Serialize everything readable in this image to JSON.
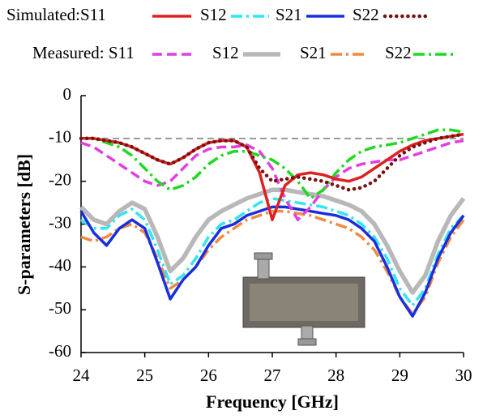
{
  "chart_data": {
    "type": "line",
    "x_label": "Frequency [GHz]",
    "y_label": "S-parameters [dB]",
    "x": [
      24,
      24.2,
      24.4,
      24.6,
      24.8,
      25,
      25.2,
      25.4,
      25.6,
      25.8,
      26,
      26.2,
      26.4,
      26.6,
      26.8,
      27,
      27.2,
      27.4,
      27.6,
      27.8,
      28,
      28.2,
      28.4,
      28.6,
      28.8,
      29,
      29.2,
      29.4,
      29.6,
      29.8,
      30
    ],
    "xlim": [
      24,
      30
    ],
    "xticks": [
      24,
      25,
      26,
      27,
      28,
      29,
      30
    ],
    "ylim": [
      -60,
      0
    ],
    "yticks": [
      -60,
      -50,
      -40,
      -30,
      -20,
      -10,
      0
    ],
    "reference_line": -10,
    "series": [
      {
        "name": "Simulated:S11",
        "color": "#e02020",
        "style": "solid",
        "values": [
          -10,
          -10,
          -10.5,
          -11,
          -12,
          -13.5,
          -15,
          -16,
          -14.5,
          -12.5,
          -11,
          -10.5,
          -10.5,
          -12,
          -18,
          -29,
          -21,
          -18.5,
          -18,
          -18.5,
          -19.5,
          -20,
          -19,
          -17,
          -15,
          -13,
          -11.5,
          -10.5,
          -10,
          -9.5,
          -9
        ]
      },
      {
        "name": "S12",
        "color": "#33e5f0",
        "style": "dashdot",
        "values": [
          -29,
          -31,
          -31,
          -28,
          -26.5,
          -29,
          -36,
          -44,
          -42,
          -38,
          -33,
          -30,
          -29,
          -27,
          -25,
          -24,
          -24.5,
          -25,
          -25.5,
          -26,
          -27,
          -28,
          -30,
          -33,
          -38,
          -45,
          -49,
          -45,
          -37,
          -31,
          -28
        ]
      },
      {
        "name": "S21",
        "color": "#1a2ee0",
        "style": "solid",
        "values": [
          -27,
          -32,
          -35,
          -31,
          -29,
          -31,
          -39,
          -47.5,
          -43,
          -40,
          -35,
          -31,
          -30,
          -28,
          -27,
          -26,
          -26,
          -26.5,
          -27,
          -27.5,
          -28,
          -29,
          -31,
          -34,
          -40,
          -47,
          -51.5,
          -46,
          -38,
          -32,
          -28
        ]
      },
      {
        "name": "S22",
        "color": "#7a1010",
        "style": "dot",
        "values": [
          -10,
          -10,
          -10.5,
          -11,
          -12,
          -13.5,
          -15,
          -16,
          -14.5,
          -12.5,
          -11,
          -10.5,
          -10.5,
          -12,
          -17,
          -20,
          -19.5,
          -19,
          -19.5,
          -20,
          -21,
          -22,
          -21.5,
          -20,
          -17,
          -14,
          -12,
          -11,
          -10,
          -9.5,
          -9
        ]
      },
      {
        "name": "Measured: S11",
        "color": "#e040e0",
        "style": "dash",
        "values": [
          -11,
          -12,
          -14,
          -16,
          -18,
          -20,
          -21,
          -20,
          -17,
          -14,
          -12.5,
          -12,
          -12,
          -11.5,
          -13,
          -17,
          -24,
          -29,
          -26,
          -22,
          -19,
          -17,
          -16,
          -15.5,
          -15,
          -15,
          -14,
          -13,
          -12,
          -11,
          -10.5
        ]
      },
      {
        "name": "S12",
        "color": "#b8b8b8",
        "style": "thick",
        "values": [
          -26,
          -29,
          -30,
          -27,
          -25,
          -26.5,
          -33,
          -41,
          -38,
          -33,
          -29,
          -27,
          -25.5,
          -24,
          -23,
          -22,
          -22,
          -22.5,
          -23,
          -23.5,
          -24.5,
          -25.5,
          -27,
          -30,
          -35,
          -41,
          -46,
          -42,
          -34,
          -28,
          -24
        ]
      },
      {
        "name": "S21",
        "color": "#f08a40",
        "style": "dashdot",
        "values": [
          -33,
          -34,
          -33,
          -31,
          -30,
          -32,
          -38,
          -45,
          -43,
          -40,
          -36,
          -33,
          -31,
          -29,
          -28,
          -27,
          -27,
          -27.5,
          -28,
          -29,
          -30,
          -31,
          -33,
          -36,
          -41,
          -47,
          -51,
          -47,
          -39,
          -33,
          -29
        ]
      },
      {
        "name": "S22",
        "color": "#20d820",
        "style": "dashdot",
        "values": [
          -10,
          -10,
          -11,
          -12,
          -14,
          -17,
          -20,
          -22,
          -21,
          -19,
          -16,
          -14,
          -13,
          -13,
          -14,
          -15,
          -17,
          -20,
          -24,
          -22,
          -18,
          -15,
          -13,
          -12,
          -11.5,
          -11,
          -10,
          -9,
          -8,
          -8,
          -8.5
        ]
      }
    ]
  }
}
